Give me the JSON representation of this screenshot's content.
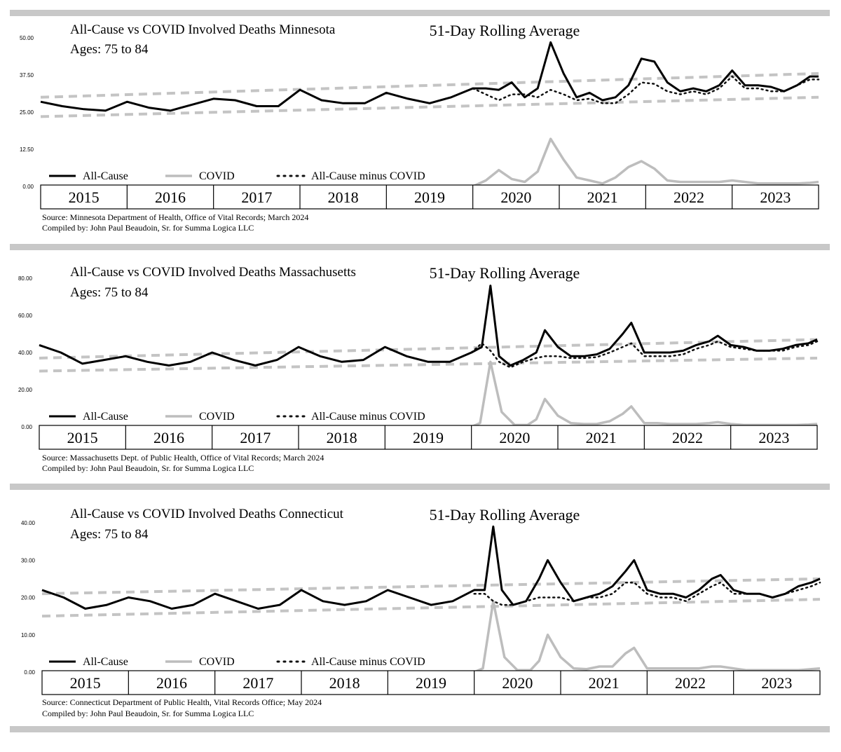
{
  "chart_data": [
    {
      "type": "line",
      "title": "All-Cause vs COVID Involved Deaths Minnesota",
      "subtitle": "Ages:  75 to 84",
      "annotation": "51-Day Rolling Average",
      "ylim": [
        0,
        50
      ],
      "yticks": [
        "0.00",
        "12.50",
        "25.00",
        "37.50",
        "50.00"
      ],
      "xlim": [
        2015,
        2024
      ],
      "years": [
        "2015",
        "2016",
        "2017",
        "2018",
        "2019",
        "2020",
        "2021",
        "2022",
        "2023"
      ],
      "legend": [
        "All-Cause",
        "COVID",
        "All-Cause minus COVID"
      ],
      "source": "Source:  Minnesota Department of Health, Office of Vital Records; March 2024",
      "compiled": "Compiled by:  John Paul Beaudoin, Sr. for Summa Logica LLC",
      "trendlines": [
        {
          "x": [
            2015,
            2024
          ],
          "y": [
            30,
            38
          ]
        },
        {
          "x": [
            2015,
            2024
          ],
          "y": [
            23.5,
            30
          ]
        }
      ],
      "series": [
        {
          "name": "All-Cause",
          "x": [
            2015,
            2015.25,
            2015.5,
            2015.75,
            2016,
            2016.25,
            2016.5,
            2016.75,
            2017,
            2017.25,
            2017.5,
            2017.75,
            2018,
            2018.25,
            2018.5,
            2018.75,
            2019,
            2019.25,
            2019.5,
            2019.75,
            2020,
            2020.15,
            2020.3,
            2020.45,
            2020.6,
            2020.75,
            2020.9,
            2021.05,
            2021.2,
            2021.35,
            2021.5,
            2021.65,
            2021.8,
            2021.95,
            2022.1,
            2022.25,
            2022.4,
            2022.55,
            2022.7,
            2022.85,
            2023,
            2023.15,
            2023.3,
            2023.45,
            2023.6,
            2023.75,
            2023.9,
            2024
          ],
          "y": [
            28.5,
            27,
            26,
            25.5,
            28.5,
            26.5,
            25.5,
            27.5,
            29.5,
            29,
            27,
            27,
            32.5,
            29,
            28,
            28,
            31.5,
            29.5,
            28,
            30,
            33,
            33,
            32.5,
            35,
            30,
            33,
            48.5,
            38,
            30,
            31.5,
            29,
            30,
            34,
            43,
            42,
            35,
            32,
            33,
            32,
            34,
            39,
            34,
            34,
            33.5,
            32,
            34,
            37,
            37
          ]
        },
        {
          "name": "COVID",
          "x": [
            2015,
            2020,
            2020.15,
            2020.3,
            2020.45,
            2020.6,
            2020.75,
            2020.9,
            2021.05,
            2021.2,
            2021.35,
            2021.5,
            2021.65,
            2021.8,
            2021.95,
            2022.1,
            2022.25,
            2022.4,
            2022.55,
            2022.7,
            2022.85,
            2023,
            2023.15,
            2023.3,
            2023.45,
            2023.6,
            2023.75,
            2023.9,
            2024
          ],
          "y": [
            0,
            0,
            2,
            5.5,
            2.5,
            1.5,
            5,
            16,
            9,
            3,
            2,
            1,
            3,
            6.5,
            8.5,
            6,
            2,
            1.5,
            1.5,
            1.5,
            1.5,
            2,
            1.5,
            1,
            1,
            1,
            1,
            1.2,
            1.5
          ]
        },
        {
          "name": "All-Cause minus COVID",
          "x": [
            2020,
            2020.15,
            2020.3,
            2020.45,
            2020.6,
            2020.75,
            2020.9,
            2021.05,
            2021.2,
            2021.35,
            2021.5,
            2021.65,
            2021.8,
            2021.95,
            2022.1,
            2022.25,
            2022.4,
            2022.55,
            2022.7,
            2022.85,
            2023,
            2023.15,
            2023.3,
            2023.45,
            2023.6,
            2023.75,
            2023.9,
            2024
          ],
          "y": [
            33,
            31,
            29,
            31,
            31,
            30,
            32.5,
            31,
            29,
            29.5,
            28,
            28,
            31,
            35,
            34.5,
            32,
            31,
            32,
            31,
            33,
            37,
            33,
            33,
            32,
            32,
            34,
            36,
            36
          ]
        }
      ]
    },
    {
      "type": "line",
      "title": "All-Cause vs COVID Involved Deaths Massachusetts",
      "subtitle": "Ages:  75 to 84",
      "annotation": "51-Day Rolling Average",
      "ylim": [
        0,
        80
      ],
      "yticks": [
        "0.00",
        "20.00",
        "40.00",
        "60.00",
        "80.00"
      ],
      "xlim": [
        2015,
        2024
      ],
      "years": [
        "2015",
        "2016",
        "2017",
        "2018",
        "2019",
        "2020",
        "2021",
        "2022",
        "2023"
      ],
      "legend": [
        "All-Cause",
        "COVID",
        "All-Cause minus COVID"
      ],
      "source": "Source:  Massachusetts Dept. of Public Health, Office of Vital Records; March 2024",
      "compiled": "Compiled by:  John Paul Beaudoin, Sr. for Summa Logica LLC",
      "trendlines": [
        {
          "x": [
            2015,
            2024
          ],
          "y": [
            37,
            47
          ]
        },
        {
          "x": [
            2015,
            2024
          ],
          "y": [
            30,
            37
          ]
        }
      ],
      "series": [
        {
          "name": "All-Cause",
          "x": [
            2015,
            2015.25,
            2015.5,
            2015.75,
            2016,
            2016.25,
            2016.5,
            2016.75,
            2017,
            2017.25,
            2017.5,
            2017.75,
            2018,
            2018.25,
            2018.5,
            2018.75,
            2019,
            2019.25,
            2019.5,
            2019.75,
            2020,
            2020.12,
            2020.22,
            2020.32,
            2020.45,
            2020.6,
            2020.75,
            2020.85,
            2021,
            2021.15,
            2021.3,
            2021.45,
            2021.6,
            2021.75,
            2021.85,
            2022,
            2022.15,
            2022.3,
            2022.45,
            2022.6,
            2022.75,
            2022.85,
            2023,
            2023.15,
            2023.3,
            2023.45,
            2023.6,
            2023.75,
            2023.9,
            2024
          ],
          "y": [
            44,
            40,
            34,
            36,
            38,
            35,
            33,
            35,
            40,
            36,
            33,
            36,
            43,
            38,
            35,
            36,
            43,
            38,
            35,
            35,
            40,
            43,
            76,
            38,
            33,
            36,
            40,
            52,
            43,
            38,
            38,
            39,
            42,
            50,
            56,
            40,
            40,
            40,
            41,
            44,
            46,
            49,
            44,
            43,
            41,
            41,
            42,
            44,
            45,
            47
          ]
        },
        {
          "name": "COVID",
          "x": [
            2015,
            2020,
            2020.1,
            2020.22,
            2020.35,
            2020.5,
            2020.65,
            2020.75,
            2020.85,
            2021,
            2021.15,
            2021.3,
            2021.45,
            2021.6,
            2021.75,
            2021.85,
            2022,
            2022.15,
            2022.3,
            2022.45,
            2022.6,
            2022.75,
            2022.85,
            2023,
            2023.15,
            2023.3,
            2023.45,
            2023.6,
            2023.75,
            2023.9,
            2024
          ],
          "y": [
            0,
            0,
            2,
            35,
            8,
            1,
            1,
            4,
            15,
            6,
            2,
            1.5,
            1.5,
            3,
            7,
            11,
            2,
            2,
            1.5,
            1.5,
            1.5,
            2,
            2.5,
            1.5,
            1,
            1,
            1,
            1,
            1,
            1.2,
            1.5
          ]
        },
        {
          "name": "All-Cause minus COVID",
          "x": [
            2020,
            2020.12,
            2020.22,
            2020.32,
            2020.45,
            2020.6,
            2020.75,
            2020.85,
            2021,
            2021.15,
            2021.3,
            2021.45,
            2021.6,
            2021.75,
            2021.85,
            2022,
            2022.15,
            2022.3,
            2022.45,
            2022.6,
            2022.75,
            2022.85,
            2023,
            2023.15,
            2023.3,
            2023.45,
            2023.6,
            2023.75,
            2023.9,
            2024
          ],
          "y": [
            40,
            45,
            41,
            35,
            32,
            35,
            37,
            38,
            38,
            37,
            37,
            37.5,
            40,
            43,
            45,
            38,
            38,
            38,
            39,
            42,
            44,
            46,
            43,
            42,
            41,
            41,
            41,
            43,
            44,
            46
          ]
        }
      ]
    },
    {
      "type": "line",
      "title": "All-Cause vs COVID Involved Deaths Connecticut",
      "subtitle": "Ages:  75 to 84",
      "annotation": "51-Day Rolling Average",
      "ylim": [
        0,
        40
      ],
      "yticks": [
        "0.00",
        "10.00",
        "20.00",
        "30.00",
        "40.00"
      ],
      "xlim": [
        2015,
        2024
      ],
      "years": [
        "2015",
        "2016",
        "2017",
        "2018",
        "2019",
        "2020",
        "2021",
        "2022",
        "2023"
      ],
      "legend": [
        "All-Cause",
        "COVID",
        "All-Cause minus COVID"
      ],
      "source": "Source:  Connecticut Department of Public Health, Vital Records Office; May 2024",
      "compiled": "Compiled by:  John Paul Beaudoin, Sr. for Summa Logica LLC",
      "trendlines": [
        {
          "x": [
            2015,
            2024
          ],
          "y": [
            21,
            25
          ]
        },
        {
          "x": [
            2015,
            2024
          ],
          "y": [
            15,
            19.5
          ]
        }
      ],
      "series": [
        {
          "name": "All-Cause",
          "x": [
            2015,
            2015.25,
            2015.5,
            2015.75,
            2016,
            2016.25,
            2016.5,
            2016.75,
            2017,
            2017.25,
            2017.5,
            2017.75,
            2018,
            2018.25,
            2018.5,
            2018.75,
            2019,
            2019.25,
            2019.5,
            2019.75,
            2020,
            2020.12,
            2020.22,
            2020.32,
            2020.45,
            2020.6,
            2020.75,
            2020.85,
            2021,
            2021.15,
            2021.3,
            2021.45,
            2021.6,
            2021.75,
            2021.85,
            2022,
            2022.15,
            2022.3,
            2022.45,
            2022.6,
            2022.75,
            2022.85,
            2023,
            2023.15,
            2023.3,
            2023.45,
            2023.6,
            2023.75,
            2023.9,
            2024
          ],
          "y": [
            22,
            20,
            17,
            18,
            20,
            19,
            17,
            18,
            21,
            19,
            17,
            18,
            22,
            19,
            18,
            19,
            22,
            20,
            18,
            19,
            22,
            22,
            39,
            22,
            18,
            19,
            25,
            30,
            24,
            19,
            20,
            21,
            23,
            27,
            30,
            22,
            21,
            21,
            20,
            22,
            25,
            26,
            22,
            21,
            21,
            20,
            21,
            23,
            24,
            25
          ]
        },
        {
          "name": "COVID",
          "x": [
            2015,
            2020,
            2020.1,
            2020.22,
            2020.35,
            2020.5,
            2020.65,
            2020.75,
            2020.85,
            2021,
            2021.15,
            2021.3,
            2021.45,
            2021.6,
            2021.75,
            2021.85,
            2022,
            2022.15,
            2022.3,
            2022.45,
            2022.6,
            2022.75,
            2022.85,
            2023,
            2023.15,
            2023.3,
            2023.45,
            2023.6,
            2023.75,
            2023.9,
            2024
          ],
          "y": [
            0,
            0,
            1,
            19,
            4,
            0.5,
            0.5,
            3,
            10,
            4,
            1,
            0.8,
            1.5,
            1.5,
            5,
            6.5,
            1,
            1,
            1,
            1,
            1,
            1.5,
            1.5,
            1,
            0.5,
            0.5,
            0.5,
            0.5,
            0.5,
            0.8,
            1
          ]
        },
        {
          "name": "All-Cause minus COVID",
          "x": [
            2020,
            2020.12,
            2020.22,
            2020.32,
            2020.45,
            2020.6,
            2020.75,
            2020.85,
            2021,
            2021.15,
            2021.3,
            2021.45,
            2021.6,
            2021.75,
            2021.85,
            2022,
            2022.15,
            2022.3,
            2022.45,
            2022.6,
            2022.75,
            2022.85,
            2023,
            2023.15,
            2023.3,
            2023.45,
            2023.6,
            2023.75,
            2023.9,
            2024
          ],
          "y": [
            21,
            21,
            19,
            18,
            18,
            19,
            20,
            20,
            20,
            19,
            20,
            20,
            21,
            24,
            24,
            21,
            20,
            20,
            19,
            21,
            23,
            24,
            21,
            21,
            21,
            20,
            21,
            22,
            23,
            24
          ]
        }
      ]
    }
  ]
}
